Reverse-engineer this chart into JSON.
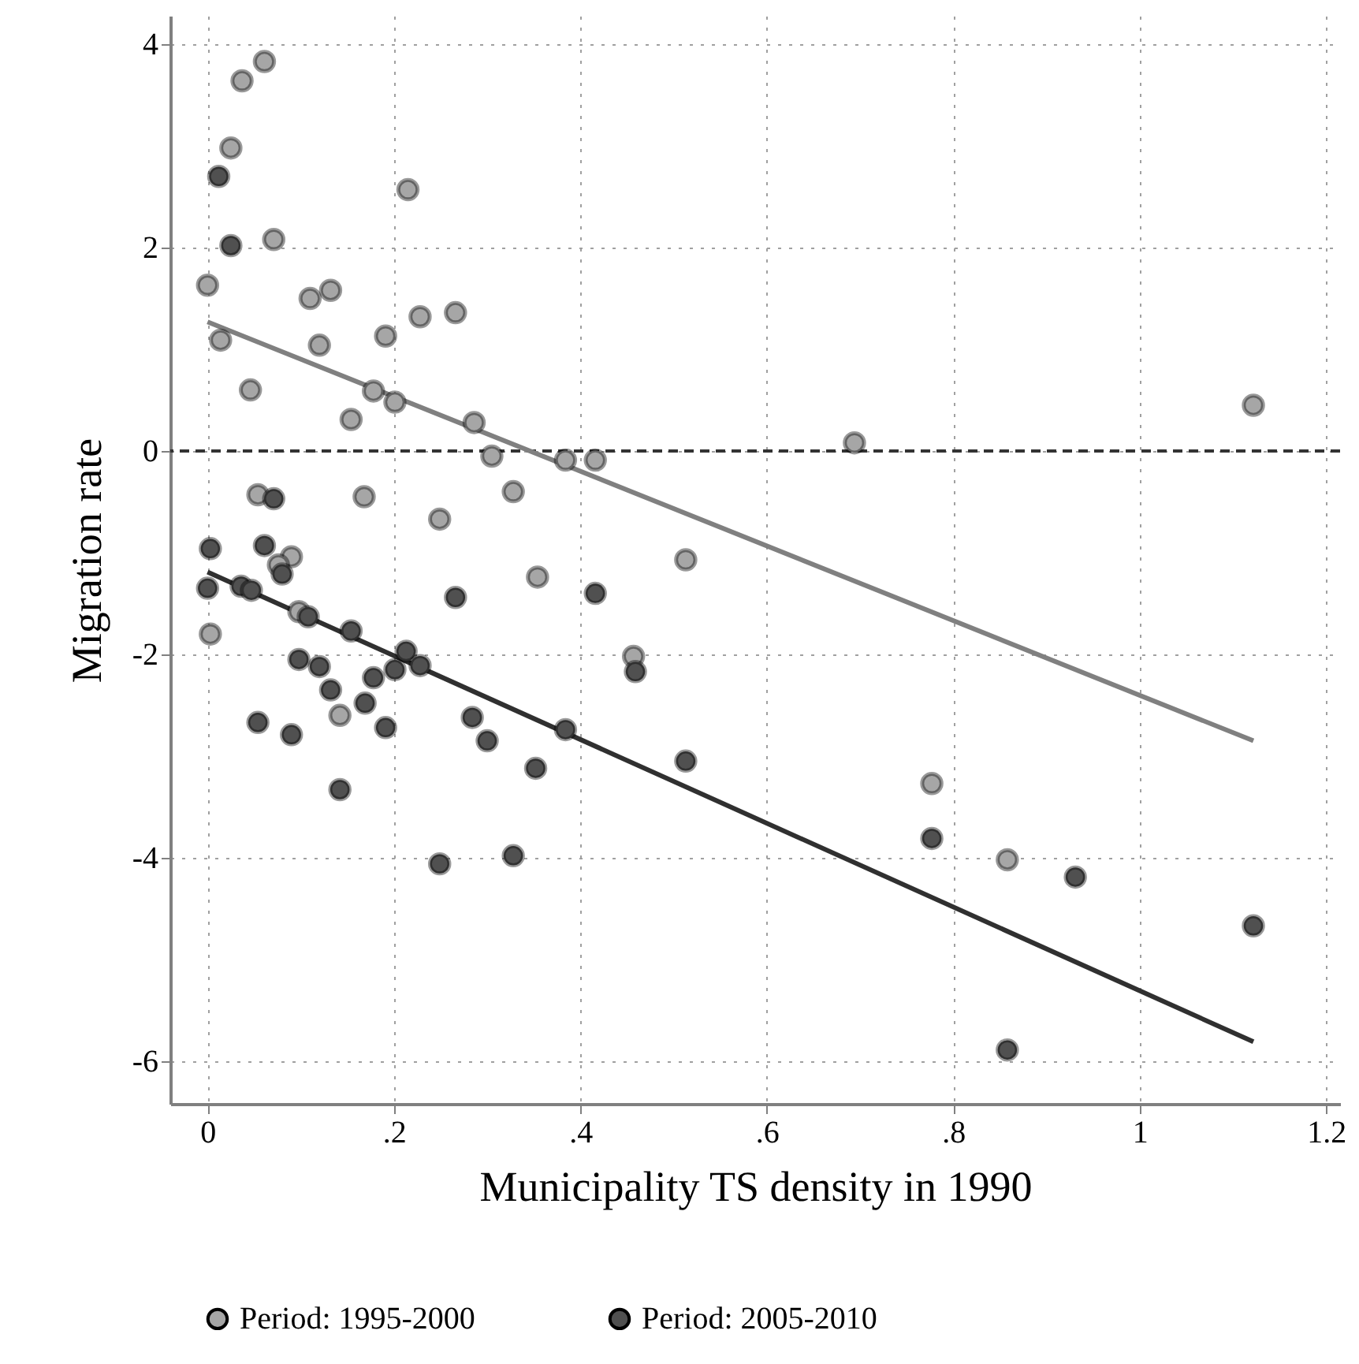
{
  "chart_data": {
    "type": "scatter",
    "xlabel": "Municipality TS density in 1990",
    "ylabel": "Migration rate",
    "xlim": [
      -0.04,
      1.215
    ],
    "ylim": [
      -6.42,
      4.28
    ],
    "xticks": [
      0,
      {
        "value": 0.2,
        "label": ".2"
      },
      {
        "value": 0.4,
        "label": ".4"
      },
      {
        "value": 0.6,
        "label": ".6"
      },
      {
        "value": 0.8,
        "label": ".8"
      },
      1,
      1.2
    ],
    "yticks": [
      -6,
      -4,
      -2,
      0,
      2,
      4
    ],
    "grid": true,
    "legend": "bottom",
    "ref_lines": [
      {
        "axis": "y",
        "value": 0,
        "color": "#333333",
        "line_style": "dashed"
      }
    ],
    "series": [
      {
        "name": "Period: 1995-2000",
        "marker": "circle",
        "color": "#a6a6a6",
        "x": [
          0.0,
          0.014,
          0.025,
          0.037,
          0.061,
          0.071,
          0.046,
          0.11,
          0.132,
          0.12,
          0.191,
          0.228,
          0.266,
          0.215,
          0.178,
          0.201,
          0.154,
          0.286,
          0.054,
          0.168,
          0.249,
          0.305,
          0.384,
          0.416,
          0.328,
          0.354,
          0.513,
          0.694,
          0.457,
          1.122,
          0.858,
          0.777,
          0.09,
          0.098,
          0.003,
          0.142,
          0.076
        ],
        "values": [
          1.63,
          1.09,
          2.98,
          3.64,
          3.83,
          2.08,
          0.6,
          1.5,
          1.58,
          1.04,
          1.13,
          1.32,
          1.36,
          2.57,
          0.59,
          0.48,
          0.31,
          0.28,
          -0.43,
          -0.45,
          -0.67,
          -0.05,
          -0.09,
          -0.09,
          -0.4,
          -1.24,
          -1.07,
          0.08,
          -2.02,
          0.45,
          -4.02,
          -3.27,
          -1.04,
          -1.58,
          -1.8,
          -2.6,
          -1.12
        ]
      },
      {
        "name": "Period: 2005-2010",
        "marker": "circle",
        "color": "#505050",
        "x": [
          0.012,
          0.025,
          0.071,
          0.003,
          0.061,
          0.08,
          0.0,
          0.036,
          0.047,
          0.108,
          0.154,
          0.266,
          0.213,
          0.228,
          0.201,
          0.098,
          0.12,
          0.178,
          0.132,
          0.169,
          0.054,
          0.09,
          0.191,
          0.284,
          0.3,
          0.142,
          0.249,
          0.416,
          0.459,
          0.384,
          0.352,
          0.328,
          0.513,
          0.777,
          0.931,
          0.858,
          1.122
        ],
        "values": [
          2.7,
          2.02,
          -0.47,
          -0.96,
          -0.93,
          -1.21,
          -1.35,
          -1.33,
          -1.37,
          -1.63,
          -1.77,
          -1.44,
          -1.97,
          -2.11,
          -2.15,
          -2.05,
          -2.12,
          -2.23,
          -2.35,
          -2.48,
          -2.67,
          -2.79,
          -2.72,
          -2.62,
          -2.85,
          -3.33,
          -4.06,
          -1.4,
          -2.17,
          -2.74,
          -3.12,
          -3.98,
          -3.05,
          -3.81,
          -4.19,
          -5.89,
          -4.67
        ]
      },
      {
        "type": "line",
        "color": "#808080",
        "x": [
          0,
          1.122
        ],
        "values": [
          1.27,
          -2.85
        ]
      },
      {
        "type": "line",
        "color": "#303030",
        "x": [
          0,
          1.122
        ],
        "values": [
          -1.19,
          -5.81
        ]
      }
    ]
  }
}
